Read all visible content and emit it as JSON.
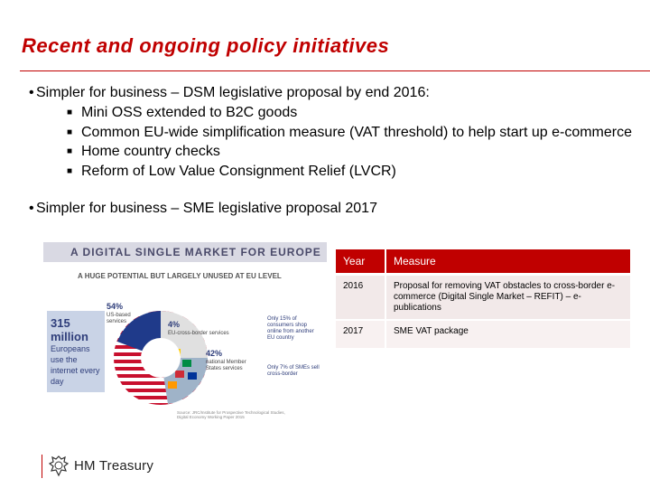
{
  "slide": {
    "title": "Recent and ongoing policy initiatives",
    "bullet1": "Simpler for business – DSM legislative proposal by end 2016:",
    "bullet1_items": [
      "Mini OSS extended to B2C goods",
      "Common EU-wide simplification measure (VAT threshold) to help start up e-commerce",
      "Home country checks",
      "Reform of Low Value Consignment Relief (LVCR)"
    ],
    "bullet2": "Simpler for business – SME legislative proposal 2017"
  },
  "infographic": {
    "banner": "A DIGITAL SINGLE MARKET FOR EUROPE",
    "subtitle": "A HUGE POTENTIAL BUT LARGELY UNUSED AT EU LEVEL",
    "box_big": "315 million",
    "box_small": "Europeans use the internet every day",
    "pct_us": "54%",
    "lbl_us": "US-based services",
    "pct_eu": "4%",
    "lbl_eu": "EU-cross-border services",
    "pct_nat": "42%",
    "lbl_nat": "national Member States services",
    "note1": "Only 15% of consumers shop online from another EU country",
    "note2": "Only 7% of SMEs sell cross-border",
    "source": "Source: JRC/Institute for Prospective Technological Studies, Digital Economy Working Paper 2015"
  },
  "table": {
    "headers": [
      "Year",
      "Measure"
    ],
    "rows": [
      {
        "year": "2016",
        "measure": "Proposal for removing VAT obstacles to cross-border e-commerce (Digital Single Market – REFIT) – e-publications"
      },
      {
        "year": "2017",
        "measure": "SME VAT package"
      }
    ]
  },
  "footer": {
    "org": "HM Treasury",
    "crest_icon": "royal-crest-icon"
  },
  "colors": {
    "accent": "#c00000",
    "table_row": "#f2e9e9"
  }
}
